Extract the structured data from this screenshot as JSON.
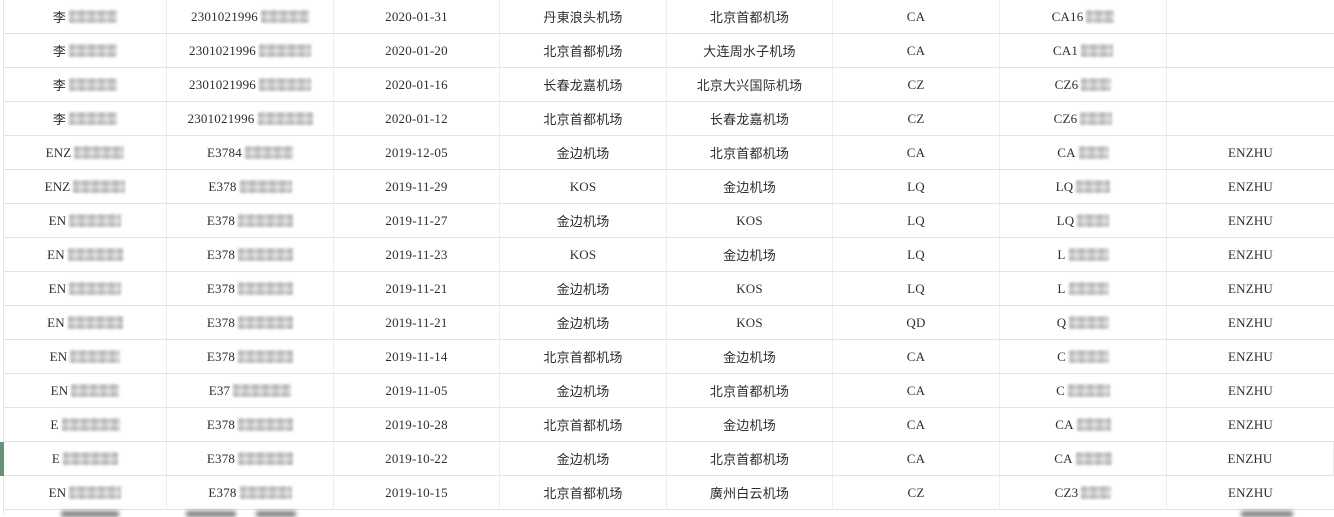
{
  "theme": {
    "accent_green": "#689178",
    "grid_line": "#e2e2e2",
    "text_color": "#2d2d2d"
  },
  "table": {
    "column_names": [
      "passenger-name",
      "document-number",
      "flight-date",
      "departure-airport",
      "arrival-airport",
      "airline-code",
      "flight-number",
      "passenger-pinyin"
    ],
    "rows": [
      {
        "accent": false,
        "cells": [
          {
            "t": "李",
            "bw": 48
          },
          {
            "t": "2301021996",
            "bw": 48
          },
          {
            "t": "2020-01-31"
          },
          {
            "t": "丹東浪头机场"
          },
          {
            "t": "北京首都机场"
          },
          {
            "t": "CA"
          },
          {
            "t": "CA16",
            "bw": 28
          },
          {
            "t": ""
          }
        ]
      },
      {
        "accent": false,
        "cells": [
          {
            "t": "李",
            "bw": 48
          },
          {
            "t": "2301021996",
            "bw": 52
          },
          {
            "t": "2020-01-20"
          },
          {
            "t": "北京首都机场"
          },
          {
            "t": "大连周水子机场"
          },
          {
            "t": "CA"
          },
          {
            "t": "CA1",
            "bw": 32
          },
          {
            "t": ""
          }
        ]
      },
      {
        "accent": false,
        "cells": [
          {
            "t": "李",
            "bw": 48
          },
          {
            "t": "2301021996",
            "bw": 52
          },
          {
            "t": "2020-01-16"
          },
          {
            "t": "长春龙嘉机场"
          },
          {
            "t": "北京大兴国际机场"
          },
          {
            "t": "CZ"
          },
          {
            "t": "CZ6",
            "bw": 30
          },
          {
            "t": ""
          }
        ]
      },
      {
        "accent": false,
        "cells": [
          {
            "t": "李",
            "bw": 48
          },
          {
            "t": "2301021996",
            "bw": 55
          },
          {
            "t": "2020-01-12"
          },
          {
            "t": "北京首都机场"
          },
          {
            "t": "长春龙嘉机场"
          },
          {
            "t": "CZ"
          },
          {
            "t": "CZ6",
            "bw": 32
          },
          {
            "t": ""
          }
        ]
      },
      {
        "accent": false,
        "cells": [
          {
            "t": "ENZ",
            "bw": 50
          },
          {
            "t": "E3784",
            "bw": 48
          },
          {
            "t": "2019-12-05"
          },
          {
            "t": "金边机场"
          },
          {
            "t": "北京首都机场"
          },
          {
            "t": "CA"
          },
          {
            "t": "CA",
            "bw": 30
          },
          {
            "t": "ENZHU"
          }
        ]
      },
      {
        "accent": false,
        "cells": [
          {
            "t": "ENZ",
            "bw": 52
          },
          {
            "t": "E378",
            "bw": 52
          },
          {
            "t": "2019-11-29"
          },
          {
            "t": "KOS"
          },
          {
            "t": "金边机场"
          },
          {
            "t": "LQ"
          },
          {
            "t": "LQ",
            "bw": 34
          },
          {
            "t": "ENZHU"
          }
        ]
      },
      {
        "accent": false,
        "cells": [
          {
            "t": "EN",
            "bw": 52
          },
          {
            "t": "E378",
            "bw": 55
          },
          {
            "t": "2019-11-27"
          },
          {
            "t": "金边机场"
          },
          {
            "t": "KOS"
          },
          {
            "t": "LQ"
          },
          {
            "t": "LQ",
            "bw": 32
          },
          {
            "t": "ENZHU"
          }
        ]
      },
      {
        "accent": false,
        "cells": [
          {
            "t": "EN",
            "bw": 55
          },
          {
            "t": "E378",
            "bw": 55
          },
          {
            "t": "2019-11-23"
          },
          {
            "t": "KOS"
          },
          {
            "t": "金边机场"
          },
          {
            "t": "LQ"
          },
          {
            "t": "L",
            "bw": 40
          },
          {
            "t": "ENZHU"
          }
        ]
      },
      {
        "accent": false,
        "cells": [
          {
            "t": "EN",
            "bw": 52
          },
          {
            "t": "E378",
            "bw": 55
          },
          {
            "t": "2019-11-21"
          },
          {
            "t": "金边机场"
          },
          {
            "t": "KOS"
          },
          {
            "t": "LQ"
          },
          {
            "t": "L",
            "bw": 40
          },
          {
            "t": "ENZHU"
          }
        ]
      },
      {
        "accent": false,
        "cells": [
          {
            "t": "EN",
            "bw": 55
          },
          {
            "t": "E378",
            "bw": 55
          },
          {
            "t": "2019-11-21"
          },
          {
            "t": "金边机场"
          },
          {
            "t": "KOS"
          },
          {
            "t": "QD"
          },
          {
            "t": "Q",
            "bw": 40
          },
          {
            "t": "ENZHU"
          }
        ]
      },
      {
        "accent": false,
        "cells": [
          {
            "t": "EN",
            "bw": 50
          },
          {
            "t": "E378",
            "bw": 55
          },
          {
            "t": "2019-11-14"
          },
          {
            "t": "北京首都机场"
          },
          {
            "t": "金边机场"
          },
          {
            "t": "CA"
          },
          {
            "t": "C",
            "bw": 40
          },
          {
            "t": "ENZHU"
          }
        ]
      },
      {
        "accent": false,
        "cells": [
          {
            "t": "EN",
            "bw": 48
          },
          {
            "t": "E37",
            "bw": 58
          },
          {
            "t": "2019-11-05"
          },
          {
            "t": "金边机场"
          },
          {
            "t": "北京首都机场"
          },
          {
            "t": "CA"
          },
          {
            "t": "C",
            "bw": 42
          },
          {
            "t": "ENZHU"
          }
        ]
      },
      {
        "accent": false,
        "cells": [
          {
            "t": "E",
            "bw": 58
          },
          {
            "t": "E378",
            "bw": 55
          },
          {
            "t": "2019-10-28"
          },
          {
            "t": "北京首都机场"
          },
          {
            "t": "金边机场"
          },
          {
            "t": "CA"
          },
          {
            "t": "CA",
            "bw": 34
          },
          {
            "t": "ENZHU"
          }
        ]
      },
      {
        "accent": true,
        "cells": [
          {
            "t": "E",
            "bw": 55
          },
          {
            "t": "E378",
            "bw": 55
          },
          {
            "t": "2019-10-22"
          },
          {
            "t": "金边机场"
          },
          {
            "t": "北京首都机场"
          },
          {
            "t": "CA"
          },
          {
            "t": "CA",
            "bw": 36
          },
          {
            "t": "ENZHU"
          }
        ]
      },
      {
        "accent": false,
        "cells": [
          {
            "t": "EN",
            "bw": 52
          },
          {
            "t": "E378",
            "bw": 52
          },
          {
            "t": "2019-10-15"
          },
          {
            "t": "北京首都机场"
          },
          {
            "t": "廣州白云机场"
          },
          {
            "t": "CZ"
          },
          {
            "t": "CZ3",
            "bw": 30
          },
          {
            "t": "ENZHU"
          }
        ]
      }
    ]
  }
}
